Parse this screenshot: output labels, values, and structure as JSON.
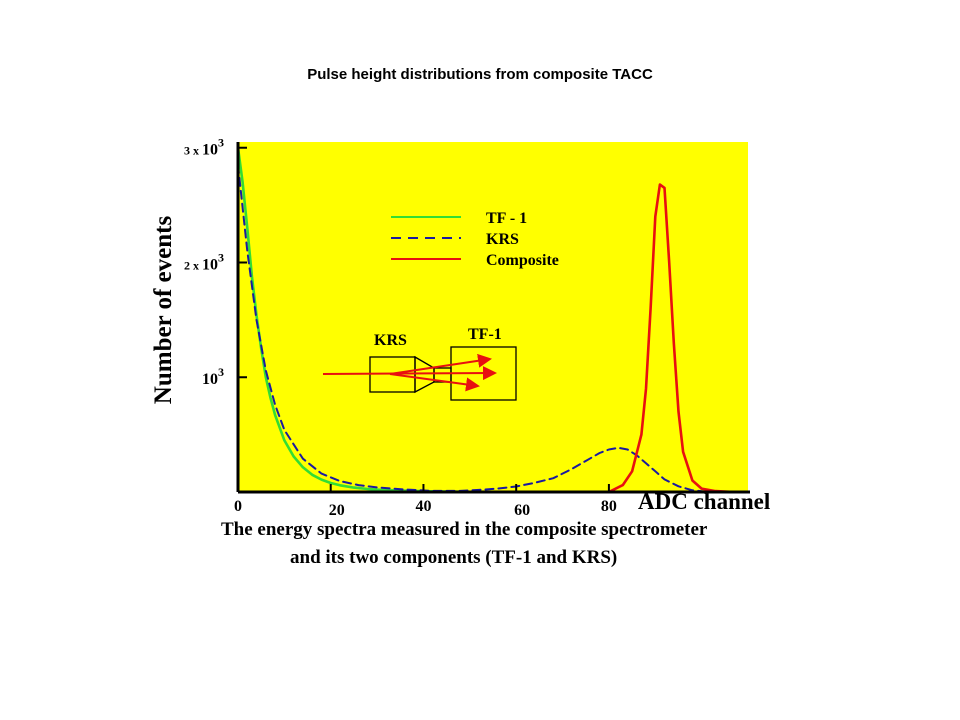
{
  "slide_title": "Pulse height distributions from composite TACC",
  "chart_data": {
    "type": "line",
    "title": "Pulse height distributions from composite TACC",
    "xlabel": "ADC channel",
    "ylabel": "Number of events",
    "x_ticks": [
      {
        "value": 0,
        "label": "0"
      },
      {
        "value": 20,
        "label": "20"
      },
      {
        "value": 40,
        "label": "40"
      },
      {
        "value": 60,
        "label": "60"
      },
      {
        "value": 80,
        "label": "80"
      }
    ],
    "y_ticks": [
      {
        "value": 1000,
        "label_pre": "",
        "label_base": "10",
        "label_exp": "3"
      },
      {
        "value": 2000,
        "label_pre": "2 x",
        "label_base": "10",
        "label_exp": "3"
      },
      {
        "value": 3000,
        "label_pre": "3 x",
        "label_base": "10",
        "label_exp": "3"
      }
    ],
    "xlim": [
      0,
      110
    ],
    "ylim": [
      0,
      3050
    ],
    "background": "#ffff00",
    "legend_position": "top-center",
    "series": [
      {
        "name": "TF - 1",
        "color": "#33dd33",
        "style": "solid",
        "x": [
          0,
          1,
          2,
          3,
          4,
          5,
          6,
          7,
          8,
          10,
          12,
          14,
          16,
          18,
          20,
          22,
          25,
          28,
          31,
          35,
          40,
          45,
          50,
          55
        ],
        "y": [
          3000,
          2700,
          2300,
          1880,
          1540,
          1250,
          1000,
          820,
          670,
          450,
          310,
          215,
          150,
          108,
          78,
          58,
          38,
          26,
          18,
          12,
          7,
          4,
          2,
          1
        ]
      },
      {
        "name": "KRS",
        "color": "#1a1aa0",
        "style": "dashed",
        "x": [
          0,
          2,
          4,
          6,
          8,
          10,
          14,
          18,
          22,
          26,
          30,
          36,
          42,
          48,
          52,
          56,
          60,
          64,
          68,
          72,
          75,
          78,
          80,
          82,
          84,
          86,
          88,
          90,
          92,
          95,
          98,
          101
        ],
        "y": [
          2850,
          2100,
          1500,
          1060,
          760,
          540,
          290,
          160,
          95,
          60,
          40,
          22,
          10,
          10,
          18,
          30,
          48,
          80,
          120,
          200,
          270,
          340,
          370,
          385,
          370,
          320,
          250,
          180,
          110,
          50,
          15,
          3
        ]
      },
      {
        "name": "Composite",
        "color": "#e81010",
        "style": "solid",
        "x": [
          80,
          83,
          85,
          87,
          88,
          89,
          90,
          91,
          92,
          93,
          94,
          95,
          96,
          98,
          100,
          103,
          107
        ],
        "y": [
          0,
          60,
          180,
          500,
          900,
          1600,
          2400,
          2680,
          2650,
          2000,
          1300,
          700,
          350,
          100,
          30,
          8,
          0
        ]
      }
    ],
    "inset": {
      "krs_label": "KRS",
      "tf1_label": "TF-1"
    }
  },
  "caption": {
    "line1": "The energy spectra  measured in the composite spectrometer",
    "line2": "and  its  two components (TF-1 and  KRS)"
  }
}
